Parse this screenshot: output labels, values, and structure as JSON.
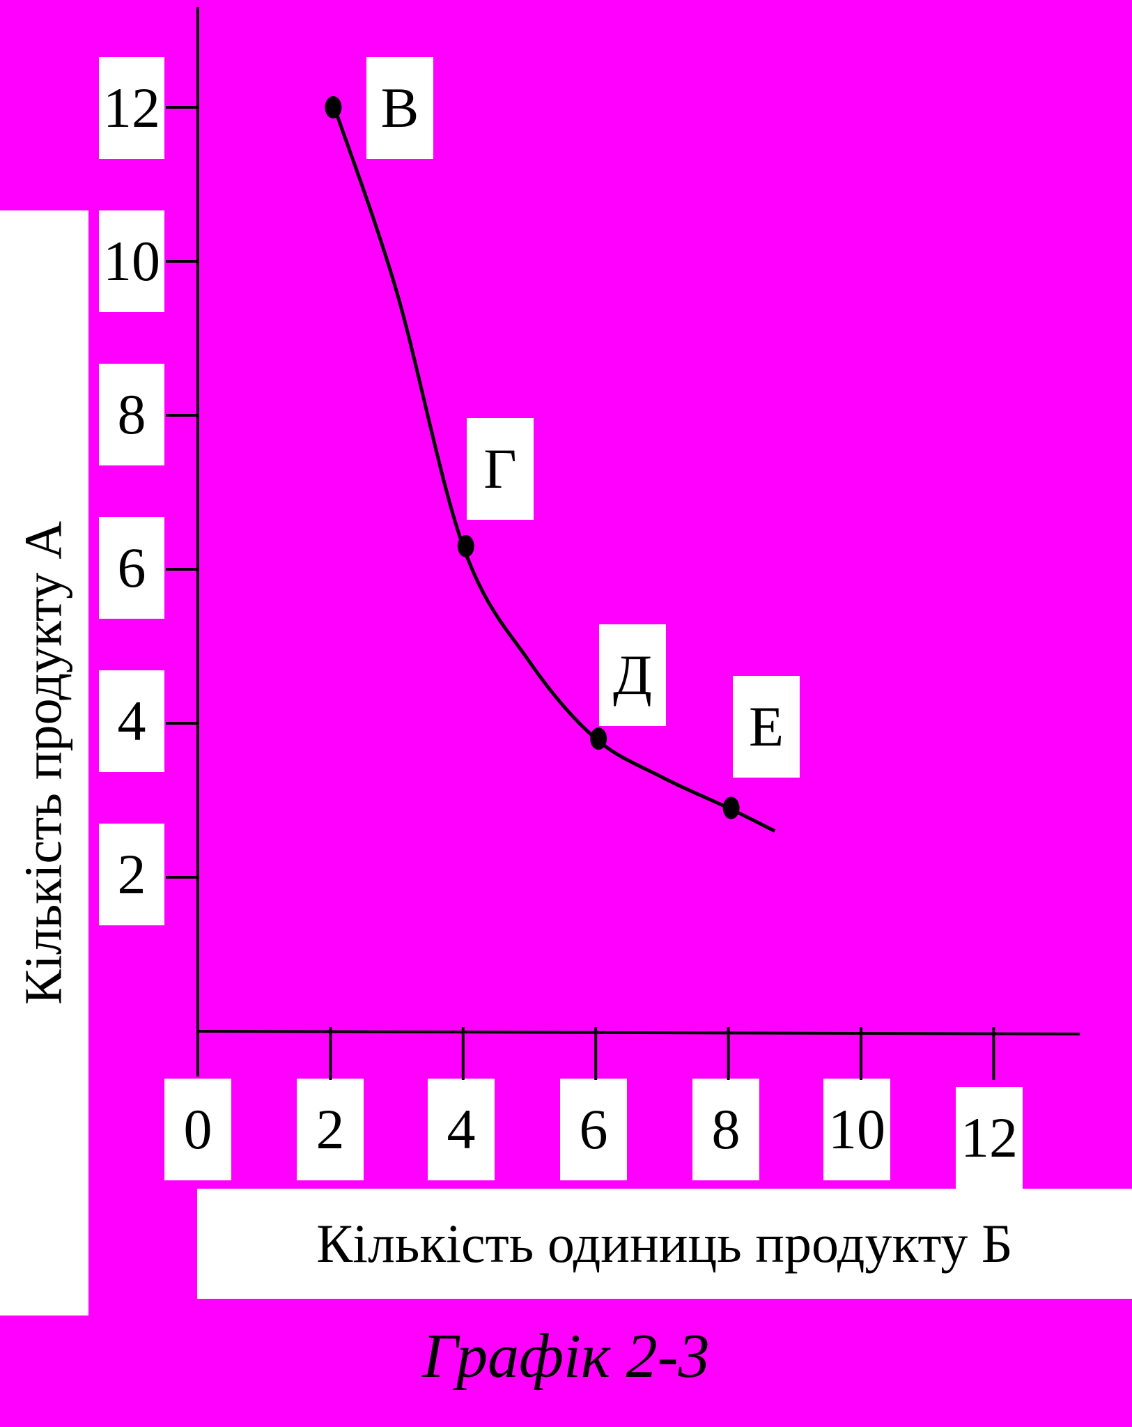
{
  "chart_data": {
    "type": "line",
    "title": "",
    "xlabel": "Кількість одиниць продукту Б",
    "ylabel": "Кількість продукту А",
    "xticks": [
      "0",
      "2",
      "4",
      "6",
      "8",
      "10",
      "12"
    ],
    "yticks": [
      "12",
      "10",
      "8",
      "6",
      "4",
      "2"
    ],
    "xlim": [
      0,
      13.3
    ],
    "ylim": [
      0,
      13.2
    ],
    "grid": false,
    "series": [
      {
        "x": [
          2,
          4,
          6,
          8
        ],
        "y": [
          12,
          6.3,
          3.8,
          2.9
        ],
        "point_labels": [
          "В",
          "Г",
          "Д",
          "Е"
        ],
        "curve": [
          [
            2.1,
            11.9
          ],
          [
            3,
            9.6
          ],
          [
            4,
            6.3
          ],
          [
            5,
            4.8
          ],
          [
            6,
            3.8
          ],
          [
            7,
            3.3
          ],
          [
            8,
            2.9
          ],
          [
            8.7,
            2.6
          ]
        ],
        "color": "#000000"
      }
    ]
  },
  "caption": "Графік 2-3",
  "colors": {
    "background": "#ff00ff",
    "label_box": "#ffffff",
    "ink": "#000000"
  }
}
